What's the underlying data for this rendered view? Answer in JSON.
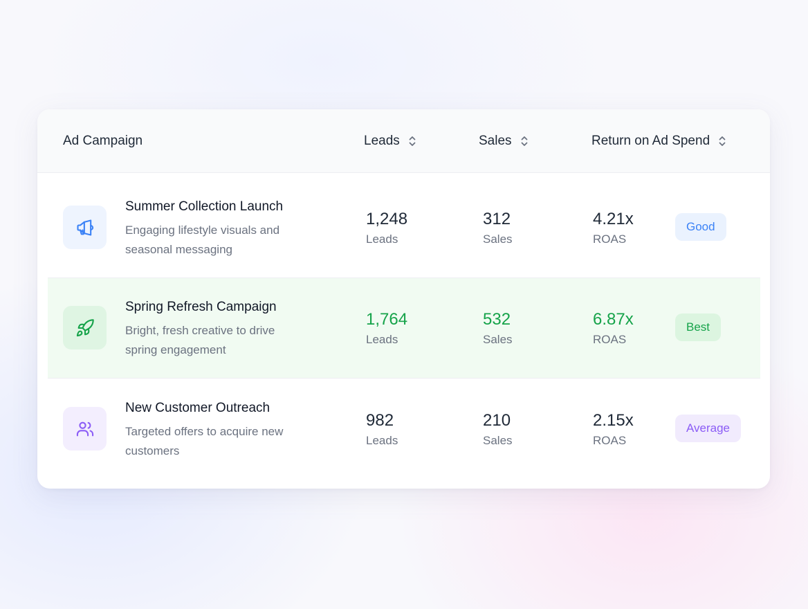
{
  "table": {
    "columns": {
      "campaign": "Ad Campaign",
      "leads": "Leads",
      "sales": "Sales",
      "roas": "Return on Ad Spend"
    },
    "rows": [
      {
        "icon": "megaphone-icon",
        "title": "Summer Collection Launch",
        "description": "Engaging lifestyle visuals and seasonal messaging",
        "leads_value": "1,248",
        "leads_unit": "Leads",
        "sales_value": "312",
        "sales_unit": "Sales",
        "roas_value": "4.21x",
        "roas_unit": "ROAS",
        "badge": "Good"
      },
      {
        "icon": "rocket-icon",
        "title": "Spring Refresh Campaign",
        "description": "Bright, fresh creative to drive spring engagement",
        "leads_value": "1,764",
        "leads_unit": "Leads",
        "sales_value": "532",
        "sales_unit": "Sales",
        "roas_value": "6.87x",
        "roas_unit": "ROAS",
        "badge": "Best"
      },
      {
        "icon": "users-icon",
        "title": "New Customer Outreach",
        "description": "Targeted offers to acquire new customers",
        "leads_value": "982",
        "leads_unit": "Leads",
        "sales_value": "210",
        "sales_unit": "Sales",
        "roas_value": "2.15x",
        "roas_unit": "ROAS",
        "badge": "Average"
      }
    ]
  },
  "colors": {
    "good": "#3b82f6",
    "best": "#16a34a",
    "average": "#8b5cf6",
    "best_row_background": "#f1fbf2"
  }
}
